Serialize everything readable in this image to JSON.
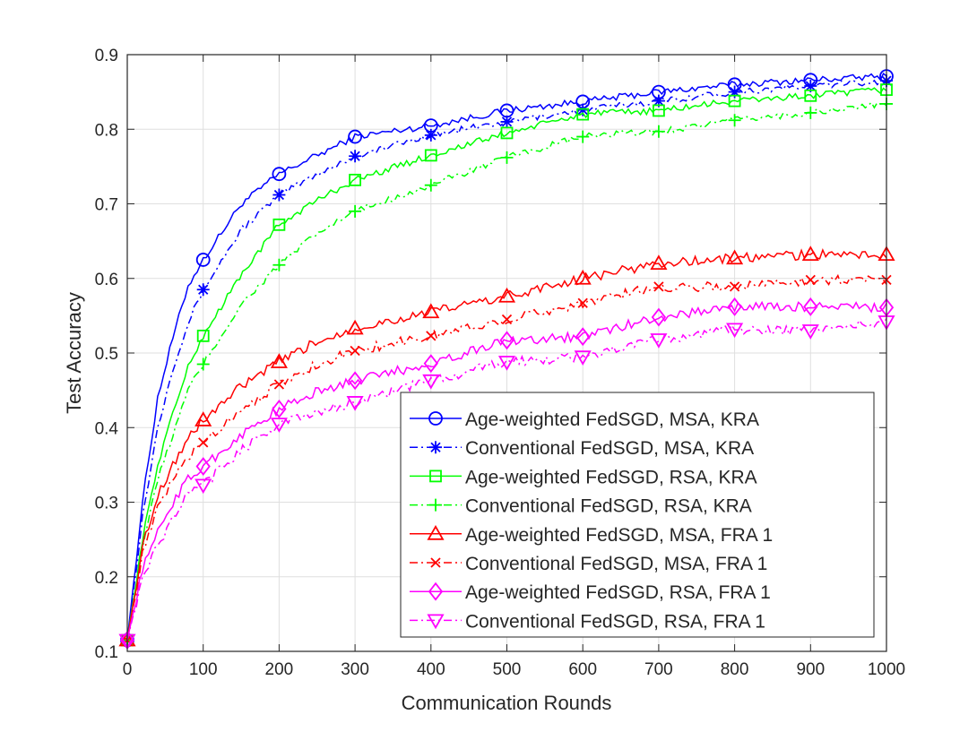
{
  "chart_data": {
    "type": "line",
    "xlabel": "Communication Rounds",
    "ylabel": "Test Accuracy",
    "xlim": [
      0,
      1000
    ],
    "ylim": [
      0.1,
      0.9
    ],
    "xticks": [
      "0",
      "100",
      "200",
      "300",
      "400",
      "500",
      "600",
      "700",
      "800",
      "900",
      "1000"
    ],
    "yticks": [
      "0.1",
      "0.2",
      "0.3",
      "0.4",
      "0.5",
      "0.6",
      "0.7",
      "0.8",
      "0.9"
    ],
    "grid": true,
    "legend_position": "lower-right",
    "series": [
      {
        "name": "Age-weighted FedSGD, MSA, KRA",
        "color": "#0000ff",
        "dash": "solid",
        "marker": "circle",
        "x": [
          0,
          20,
          40,
          60,
          80,
          100,
          150,
          200,
          250,
          300,
          400,
          500,
          600,
          700,
          800,
          900,
          1000
        ],
        "y": [
          0.115,
          0.3,
          0.44,
          0.52,
          0.59,
          0.625,
          0.7,
          0.74,
          0.765,
          0.79,
          0.805,
          0.825,
          0.837,
          0.85,
          0.86,
          0.866,
          0.871
        ]
      },
      {
        "name": "Conventional FedSGD, MSA, KRA",
        "color": "#0000ff",
        "dash": "dashdot",
        "marker": "asterisk",
        "x": [
          0,
          20,
          40,
          60,
          80,
          100,
          150,
          200,
          250,
          300,
          400,
          500,
          600,
          700,
          800,
          900,
          1000
        ],
        "y": [
          0.115,
          0.28,
          0.4,
          0.48,
          0.54,
          0.585,
          0.665,
          0.712,
          0.74,
          0.764,
          0.792,
          0.81,
          0.826,
          0.838,
          0.85,
          0.858,
          0.865
        ]
      },
      {
        "name": "Age-weighted FedSGD, RSA, KRA",
        "color": "#00ff00",
        "dash": "solid",
        "marker": "square",
        "x": [
          0,
          20,
          40,
          60,
          80,
          100,
          150,
          200,
          250,
          300,
          400,
          500,
          600,
          700,
          800,
          900,
          1000
        ],
        "y": [
          0.115,
          0.25,
          0.35,
          0.42,
          0.48,
          0.523,
          0.605,
          0.672,
          0.705,
          0.732,
          0.765,
          0.795,
          0.82,
          0.825,
          0.838,
          0.845,
          0.853
        ]
      },
      {
        "name": "Conventional FedSGD, RSA, KRA",
        "color": "#00ff00",
        "dash": "dashdot",
        "marker": "plus",
        "x": [
          0,
          20,
          40,
          60,
          80,
          100,
          150,
          200,
          250,
          300,
          400,
          500,
          600,
          700,
          800,
          900,
          1000
        ],
        "y": [
          0.115,
          0.24,
          0.33,
          0.39,
          0.45,
          0.485,
          0.565,
          0.618,
          0.66,
          0.69,
          0.725,
          0.762,
          0.79,
          0.797,
          0.812,
          0.822,
          0.834
        ]
      },
      {
        "name": "Age-weighted FedSGD, MSA, FRA 1",
        "color": "#ff0000",
        "dash": "solid",
        "marker": "triangle-up",
        "x": [
          0,
          20,
          40,
          60,
          80,
          100,
          150,
          200,
          250,
          300,
          400,
          500,
          600,
          700,
          800,
          900,
          1000
        ],
        "y": [
          0.115,
          0.24,
          0.31,
          0.35,
          0.385,
          0.41,
          0.455,
          0.488,
          0.515,
          0.533,
          0.555,
          0.576,
          0.6,
          0.62,
          0.627,
          0.632,
          0.632
        ]
      },
      {
        "name": "Conventional FedSGD, MSA, FRA 1",
        "color": "#ff0000",
        "dash": "dashdot",
        "marker": "cross",
        "x": [
          0,
          20,
          40,
          60,
          80,
          100,
          150,
          200,
          250,
          300,
          400,
          500,
          600,
          700,
          800,
          900,
          1000
        ],
        "y": [
          0.115,
          0.23,
          0.29,
          0.33,
          0.36,
          0.38,
          0.425,
          0.458,
          0.485,
          0.503,
          0.523,
          0.545,
          0.567,
          0.589,
          0.589,
          0.598,
          0.598
        ]
      },
      {
        "name": "Age-weighted FedSGD, RSA, FRA 1",
        "color": "#ff00ff",
        "dash": "solid",
        "marker": "diamond",
        "x": [
          0,
          20,
          40,
          60,
          80,
          100,
          150,
          200,
          250,
          300,
          400,
          500,
          600,
          700,
          800,
          900,
          1000
        ],
        "y": [
          0.115,
          0.21,
          0.26,
          0.3,
          0.33,
          0.348,
          0.39,
          0.425,
          0.448,
          0.463,
          0.486,
          0.517,
          0.522,
          0.548,
          0.562,
          0.562,
          0.561
        ]
      },
      {
        "name": "Conventional FedSGD, RSA, FRA 1",
        "color": "#ff00ff",
        "dash": "dashdot",
        "marker": "triangle-down",
        "x": [
          0,
          20,
          40,
          60,
          80,
          100,
          150,
          200,
          250,
          300,
          400,
          500,
          600,
          700,
          800,
          900,
          1000
        ],
        "y": [
          0.115,
          0.2,
          0.24,
          0.28,
          0.31,
          0.323,
          0.37,
          0.405,
          0.42,
          0.434,
          0.463,
          0.488,
          0.495,
          0.518,
          0.532,
          0.53,
          0.542
        ]
      }
    ]
  }
}
